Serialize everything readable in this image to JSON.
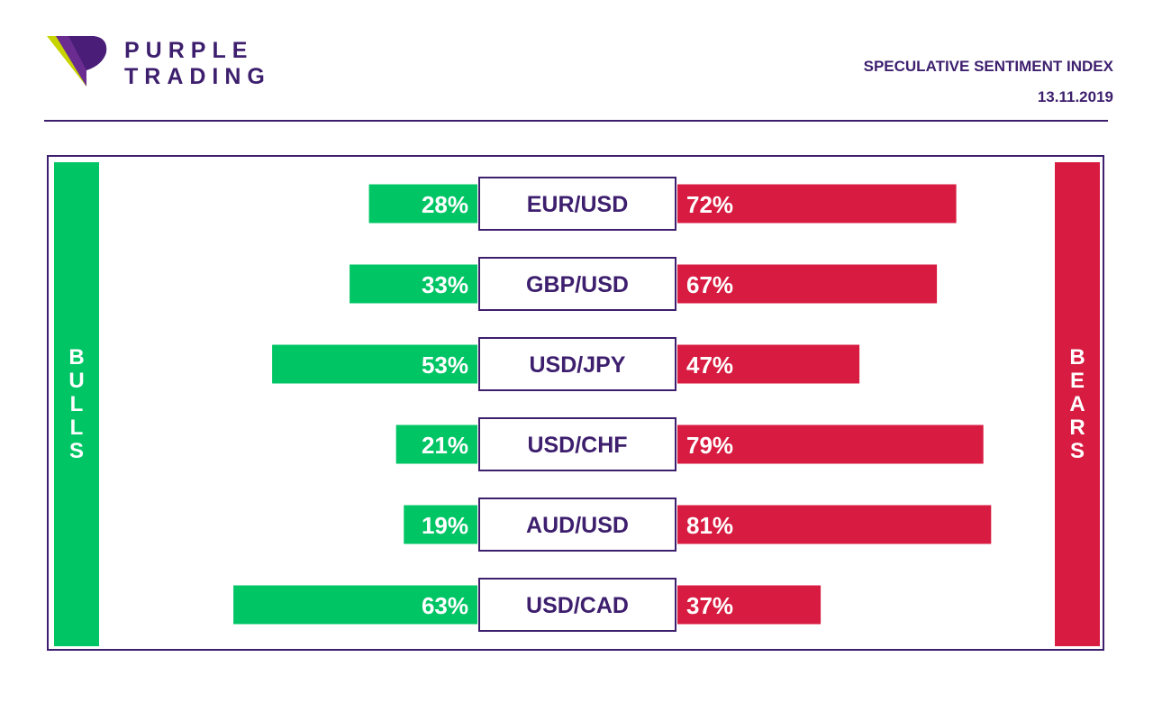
{
  "brand": {
    "line1": "PURPLE",
    "line2": "TRADING"
  },
  "header": {
    "title": "SPECULATIVE SENTIMENT INDEX",
    "date": "13.11.2019"
  },
  "sides": {
    "bulls": "BULLS",
    "bears": "BEARS"
  },
  "colors": {
    "bulls": "#00c565",
    "bears": "#d81b40",
    "brand": "#3d1f6e",
    "logo_accent": "#c8d400"
  },
  "chart_data": {
    "type": "bar",
    "categories": [
      "EUR/USD",
      "GBP/USD",
      "USD/JPY",
      "USD/CHF",
      "AUD/USD",
      "USD/CAD"
    ],
    "series": [
      {
        "name": "BULLS",
        "values": [
          28,
          33,
          53,
          21,
          19,
          63
        ],
        "labels": [
          "28%",
          "33%",
          "53%",
          "21%",
          "19%",
          "63%"
        ]
      },
      {
        "name": "BEARS",
        "values": [
          72,
          67,
          47,
          79,
          81,
          37
        ],
        "labels": [
          "72%",
          "67%",
          "47%",
          "79%",
          "81%",
          "37%"
        ]
      }
    ],
    "title": "SPECULATIVE SENTIMENT INDEX"
  }
}
